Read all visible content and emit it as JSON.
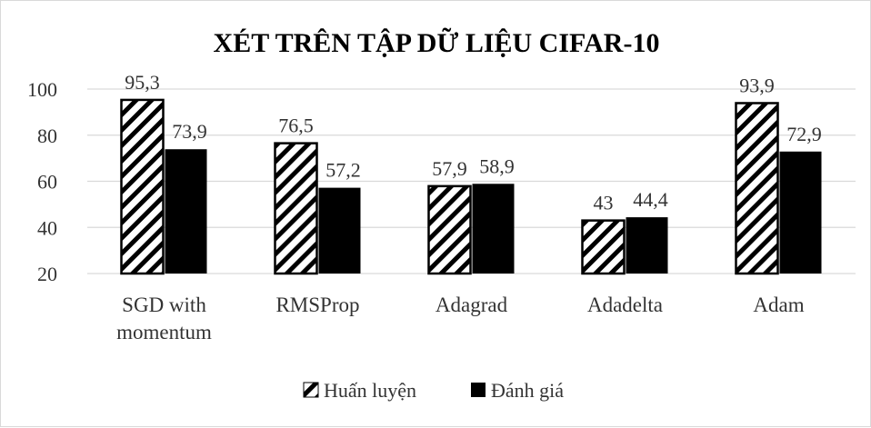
{
  "chart_data": {
    "type": "bar",
    "title": "XÉT TRÊN TẬP DỮ LIỆU CIFAR-10",
    "categories": [
      [
        "SGD with",
        "momentum"
      ],
      [
        "RMSProp"
      ],
      [
        "Adagrad"
      ],
      [
        "Adadelta"
      ],
      [
        "Adam"
      ]
    ],
    "series": [
      {
        "name": "Huấn luyện",
        "values": [
          95.3,
          76.5,
          57.9,
          43,
          93.9
        ],
        "labels": [
          "95,3",
          "76,5",
          "57,9",
          "43",
          "93,9"
        ]
      },
      {
        "name": "Đánh giá",
        "values": [
          73.9,
          57.2,
          58.9,
          44.4,
          72.9
        ],
        "labels": [
          "73,9",
          "57,2",
          "58,9",
          "44,4",
          "72,9"
        ]
      }
    ],
    "yticks": [
      "20",
      "40",
      "60",
      "80",
      "100"
    ],
    "ylim": [
      20,
      100
    ],
    "grid": true,
    "legend": "bottom",
    "colors": {
      "hatch": "#000000",
      "solid": "#000000",
      "grid": "#d9d9d9",
      "text": "#333333"
    }
  }
}
